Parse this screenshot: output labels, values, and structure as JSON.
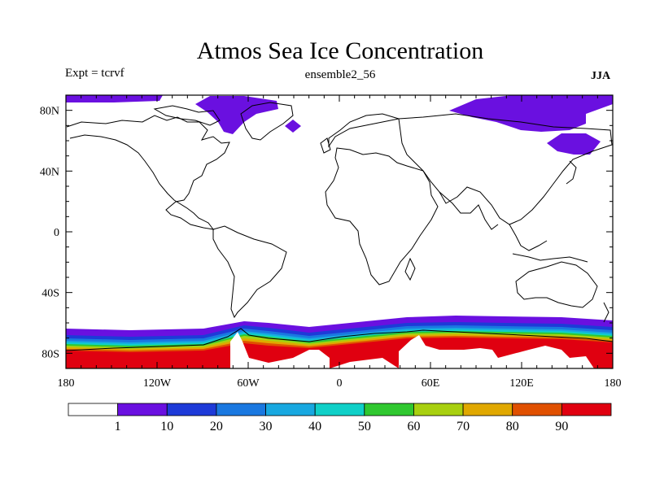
{
  "header": {
    "title": "Atmos Sea Ice Concentration",
    "left_label": "Expt = tcrvf",
    "center_label": "ensemble2_56",
    "right_label": "JJA"
  },
  "map": {
    "y_ticks": [
      {
        "lat": 80,
        "label": "80N"
      },
      {
        "lat": 40,
        "label": "40N"
      },
      {
        "lat": 0,
        "label": "0"
      },
      {
        "lat": -40,
        "label": "40S"
      },
      {
        "lat": -80,
        "label": "80S"
      }
    ],
    "x_ticks": [
      {
        "lon": -180,
        "label": "180"
      },
      {
        "lon": -120,
        "label": "120W"
      },
      {
        "lon": -60,
        "label": "60W"
      },
      {
        "lon": 0,
        "label": "0"
      },
      {
        "lon": 60,
        "label": "60E"
      },
      {
        "lon": 120,
        "label": "120E"
      },
      {
        "lon": 180,
        "label": "180"
      }
    ],
    "lon_range": [
      -180,
      180
    ],
    "lat_range": [
      -90,
      90
    ]
  },
  "colorbar": {
    "levels": [
      "1",
      "10",
      "20",
      "30",
      "40",
      "50",
      "60",
      "70",
      "80",
      "90"
    ],
    "colors": [
      "#ffffff",
      "#6a10e0",
      "#1e3ad8",
      "#1a78e0",
      "#18a8e0",
      "#10d0c8",
      "#30c830",
      "#a8d010",
      "#e0a800",
      "#e05000",
      "#e00010"
    ]
  }
}
